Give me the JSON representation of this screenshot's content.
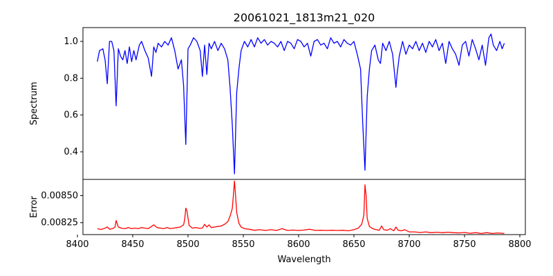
{
  "figure": {
    "title": "20061021_1813m21_020"
  },
  "chart_data": [
    {
      "type": "line",
      "title": "20061021_1813m21_020",
      "xlabel": "",
      "ylabel": "Spectrum",
      "xlim": [
        8405,
        8805
      ],
      "ylim": [
        0.25,
        1.075
      ],
      "yticks": [
        0.4,
        0.6,
        0.8,
        1.0
      ],
      "ytick_labels": [
        "0.4",
        "0.6",
        "0.8",
        "1.0"
      ],
      "grid": false,
      "series": [
        {
          "color": "#0000ff",
          "x": [
            8418,
            8420,
            8423,
            8425,
            8427,
            8429,
            8431,
            8433,
            8435,
            8437,
            8439,
            8441,
            8443,
            8445,
            8447,
            8449,
            8451,
            8453,
            8456,
            8458,
            8461,
            8464,
            8467,
            8469,
            8471,
            8473,
            8476,
            8479,
            8482,
            8485,
            8488,
            8491,
            8494,
            8496,
            8498,
            8500,
            8502,
            8505,
            8508,
            8511,
            8513,
            8515,
            8517,
            8519,
            8521,
            8524,
            8527,
            8530,
            8533,
            8536,
            8538,
            8540,
            8542,
            8544,
            8546,
            8548,
            8551,
            8554,
            8557,
            8560,
            8563,
            8566,
            8569,
            8572,
            8575,
            8578,
            8581,
            8584,
            8587,
            8590,
            8593,
            8596,
            8599,
            8602,
            8605,
            8608,
            8611,
            8614,
            8617,
            8620,
            8623,
            8626,
            8629,
            8632,
            8635,
            8638,
            8641,
            8644,
            8647,
            8650,
            8653,
            8656,
            8658,
            8660,
            8662,
            8664,
            8666,
            8669,
            8672,
            8674,
            8676,
            8679,
            8682,
            8685,
            8688,
            8689,
            8691,
            8694,
            8697,
            8700,
            8703,
            8706,
            8709,
            8712,
            8715,
            8718,
            8721,
            8724,
            8727,
            8730,
            8733,
            8736,
            8739,
            8742,
            8745,
            8748,
            8751,
            8754,
            8757,
            8760,
            8763,
            8766,
            8769,
            8772,
            8774,
            8776,
            8779,
            8782,
            8784,
            8786
          ],
          "values": [
            0.89,
            0.95,
            0.96,
            0.9,
            0.77,
            1.0,
            1.0,
            0.95,
            0.65,
            0.96,
            0.92,
            0.9,
            0.95,
            0.88,
            0.97,
            0.89,
            0.95,
            0.9,
            0.98,
            1.0,
            0.95,
            0.91,
            0.81,
            0.97,
            0.94,
            0.99,
            0.97,
            1.0,
            0.98,
            1.02,
            0.95,
            0.85,
            0.9,
            0.76,
            0.44,
            0.96,
            0.98,
            1.02,
            1.0,
            0.95,
            0.81,
            0.98,
            0.82,
            0.99,
            0.96,
            1.0,
            0.95,
            0.99,
            0.96,
            0.9,
            0.75,
            0.55,
            0.28,
            0.72,
            0.85,
            0.95,
            1.0,
            0.97,
            1.01,
            0.97,
            1.02,
            0.99,
            1.01,
            0.98,
            1.0,
            0.99,
            0.97,
            1.0,
            0.95,
            1.0,
            0.99,
            0.96,
            1.01,
            1.0,
            0.97,
            0.99,
            0.92,
            1.0,
            1.01,
            0.98,
            0.99,
            0.96,
            1.02,
            0.99,
            1.0,
            0.97,
            1.01,
            0.99,
            0.98,
            1.0,
            0.93,
            0.85,
            0.55,
            0.3,
            0.7,
            0.85,
            0.95,
            0.98,
            0.9,
            0.88,
            0.99,
            0.95,
            1.0,
            0.93,
            0.75,
            0.82,
            0.92,
            1.0,
            0.93,
            0.98,
            0.96,
            1.0,
            0.95,
            0.99,
            0.94,
            1.0,
            0.97,
            1.01,
            0.95,
            0.99,
            0.88,
            1.0,
            0.96,
            0.93,
            0.87,
            0.98,
            1.0,
            0.92,
            1.01,
            0.96,
            0.9,
            0.98,
            0.87,
            1.02,
            1.04,
            0.98,
            0.95,
            1.0,
            0.96,
            0.99
          ]
        }
      ]
    },
    {
      "type": "line",
      "title": "",
      "xlabel": "Wavelength",
      "ylabel": "Error",
      "xlim": [
        8405,
        8805
      ],
      "ylim": [
        0.00814,
        0.00865
      ],
      "xticks": [
        8400,
        8450,
        8500,
        8550,
        8600,
        8650,
        8700,
        8750,
        8800
      ],
      "xtick_labels": [
        "8400",
        "8450",
        "8500",
        "8550",
        "8600",
        "8650",
        "8700",
        "8750",
        "8800"
      ],
      "yticks": [
        0.00825,
        0.0085
      ],
      "ytick_labels": [
        "0.00825",
        "0.00850"
      ],
      "grid": false,
      "series": [
        {
          "color": "#ff0000",
          "x": [
            8418,
            8421,
            8424,
            8427,
            8429,
            8432,
            8434,
            8435,
            8437,
            8440,
            8443,
            8446,
            8449,
            8452,
            8455,
            8458,
            8461,
            8464,
            8467,
            8469,
            8472,
            8475,
            8478,
            8481,
            8484,
            8487,
            8490,
            8493,
            8496,
            8497,
            8498,
            8499,
            8501,
            8504,
            8507,
            8510,
            8513,
            8515,
            8517,
            8519,
            8521,
            8524,
            8527,
            8530,
            8533,
            8536,
            8538,
            8540,
            8541,
            8542,
            8543,
            8544,
            8546,
            8548,
            8551,
            8555,
            8560,
            8565,
            8570,
            8575,
            8580,
            8585,
            8590,
            8595,
            8600,
            8605,
            8610,
            8615,
            8620,
            8625,
            8630,
            8635,
            8640,
            8645,
            8650,
            8654,
            8657,
            8659,
            8660,
            8661,
            8662,
            8664,
            8667,
            8670,
            8673,
            8675,
            8677,
            8680,
            8683,
            8686,
            8688,
            8690,
            8693,
            8696,
            8700,
            8705,
            8710,
            8715,
            8720,
            8725,
            8730,
            8735,
            8740,
            8745,
            8750,
            8755,
            8760,
            8765,
            8770,
            8775,
            8780,
            8786
          ],
          "values": [
            0.008195,
            0.008188,
            0.008195,
            0.00821,
            0.00819,
            0.008195,
            0.00821,
            0.00827,
            0.00821,
            0.008198,
            0.008195,
            0.008205,
            0.008195,
            0.0082,
            0.008195,
            0.008205,
            0.0082,
            0.008195,
            0.008215,
            0.00823,
            0.008205,
            0.0082,
            0.008195,
            0.008205,
            0.008195,
            0.0082,
            0.008205,
            0.00821,
            0.00823,
            0.00828,
            0.008385,
            0.00836,
            0.008225,
            0.0082,
            0.008205,
            0.008198,
            0.0082,
            0.008235,
            0.00821,
            0.00823,
            0.008205,
            0.00821,
            0.008215,
            0.00822,
            0.008235,
            0.00826,
            0.00831,
            0.00838,
            0.0085,
            0.008635,
            0.0085,
            0.008345,
            0.008245,
            0.00821,
            0.008195,
            0.00819,
            0.00818,
            0.008185,
            0.008178,
            0.008185,
            0.008178,
            0.008195,
            0.008178,
            0.008182,
            0.008178,
            0.008182,
            0.00819,
            0.008178,
            0.00818,
            0.008178,
            0.00818,
            0.008178,
            0.00818,
            0.008175,
            0.008185,
            0.0082,
            0.008235,
            0.00832,
            0.0086,
            0.0085,
            0.00829,
            0.008215,
            0.008195,
            0.008185,
            0.00818,
            0.00822,
            0.008185,
            0.00818,
            0.008195,
            0.008175,
            0.00821,
            0.00818,
            0.008175,
            0.008185,
            0.008165,
            0.008165,
            0.00816,
            0.008165,
            0.008158,
            0.008162,
            0.008158,
            0.008162,
            0.008158,
            0.008155,
            0.00816,
            0.008152,
            0.008158,
            0.00815,
            0.008158,
            0.00815,
            0.008155,
            0.00815
          ]
        }
      ]
    }
  ]
}
